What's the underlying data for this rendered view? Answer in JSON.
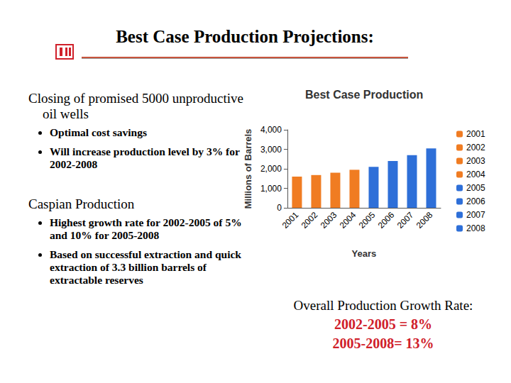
{
  "slide": {
    "title": "Best Case Production Projections:",
    "sections": [
      {
        "heading": "Closing of promised 5000 unproductive oil wells",
        "bullets": [
          "Optimal cost savings",
          "Will increase production level by 3% for 2002-2008"
        ]
      },
      {
        "heading": "Caspian Production",
        "bullets": [
          "Highest growth rate for 2002-2005 of 5% and 10% for 2005-2008",
          "Based on successful extraction and quick extraction of 3.3 billion barrels of extractable reserves"
        ]
      }
    ],
    "summary": {
      "heading": "Overall Production Growth Rate:",
      "lines": [
        "2002-2005 = 8%",
        "2005-2008= 13%"
      ]
    }
  },
  "chart_data": {
    "type": "bar",
    "title": "Best Case Production",
    "x_label": "Years",
    "y_label": "Millions of Barrels",
    "categories": [
      "2001",
      "2002",
      "2003",
      "2004",
      "2005",
      "2006",
      "2007",
      "2008"
    ],
    "values": [
      1600,
      1680,
      1800,
      1950,
      2100,
      2400,
      2700,
      3050
    ],
    "colors": [
      "#f07c22",
      "#f07c22",
      "#f07c22",
      "#f07c22",
      "#2e6fd8",
      "#2e6fd8",
      "#2e6fd8",
      "#2e6fd8"
    ],
    "ylim": [
      0,
      4000
    ],
    "yticks": [
      0,
      {
        "value": 1000,
        "label": "1,000"
      },
      {
        "value": 2000,
        "label": "2,000"
      },
      {
        "value": 3000,
        "label": "3,000"
      },
      {
        "value": 4000,
        "label": "4,000"
      }
    ],
    "grid": false,
    "legend": "right"
  }
}
